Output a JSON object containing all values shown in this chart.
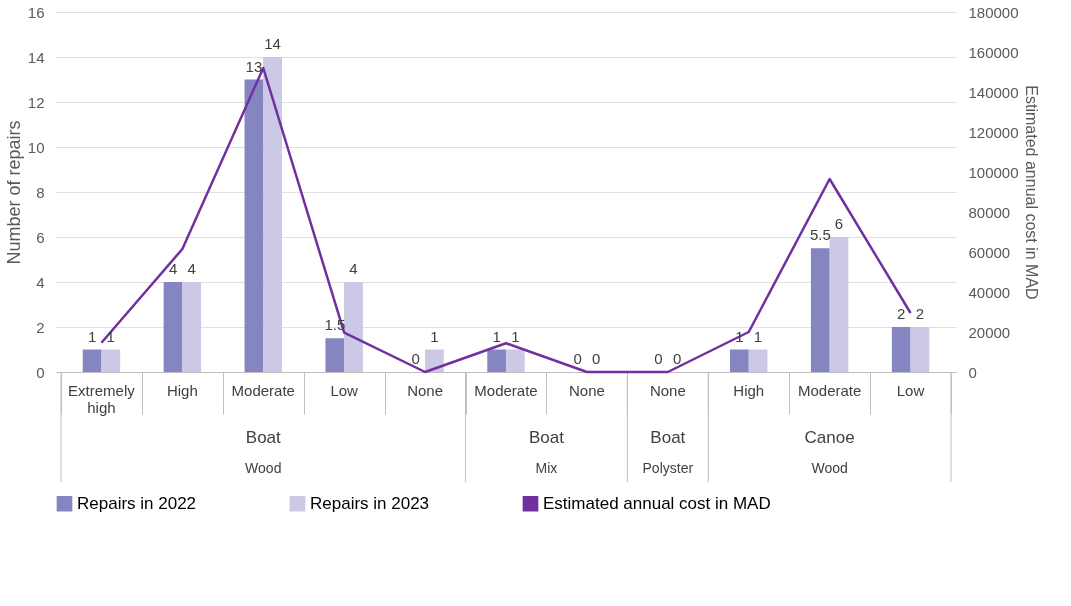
{
  "chart_data": {
    "type": "bar",
    "categories": [
      "Extremely high",
      "High",
      "Moderate",
      "Low",
      "None",
      "Moderate",
      "None",
      "None",
      "High",
      "Moderate",
      "Low"
    ],
    "series": [
      {
        "name": "Repairs in 2022",
        "color": "#8585c2",
        "values": [
          1,
          4,
          13,
          1.5,
          0,
          1,
          0,
          0,
          1,
          5.5,
          2
        ],
        "value_labels": [
          "1",
          "4",
          "13",
          "1.5",
          "0",
          "1",
          "0",
          "0",
          "1",
          "5.5",
          "2"
        ]
      },
      {
        "name": "Repairs in 2023",
        "color": "#cbc9e5",
        "values": [
          1,
          4,
          14,
          4,
          1,
          1,
          0,
          0,
          1,
          6,
          2
        ],
        "value_labels": [
          "1",
          "4",
          "14",
          "4",
          "1",
          "1",
          "0",
          "0",
          "1",
          "6",
          "2"
        ]
      },
      {
        "name": "Estimated annual cost in MAD",
        "type": "line",
        "axis": "y2",
        "color": "#7030a0",
        "values": [
          14600,
          61500,
          152000,
          19700,
          0,
          14400,
          0,
          0,
          20000,
          96500,
          29500
        ]
      }
    ],
    "ylabel": "Number of repairs",
    "y2label": "Estimated annual cost in MAD",
    "ylim": [
      0,
      16
    ],
    "yticks": [
      0,
      2,
      4,
      6,
      8,
      10,
      12,
      14,
      16
    ],
    "y2lim": [
      0,
      180000
    ],
    "y2ticks": [
      0,
      20000,
      40000,
      60000,
      80000,
      100000,
      120000,
      140000,
      160000,
      180000
    ],
    "annotations": [
      "Boat",
      "Wood",
      "Boat",
      "Mix",
      "Boat",
      "Polyster",
      "Canoe",
      "Wood"
    ],
    "grid": "y",
    "legend": "bottom",
    "marker": "none",
    "line_style": "solid"
  }
}
